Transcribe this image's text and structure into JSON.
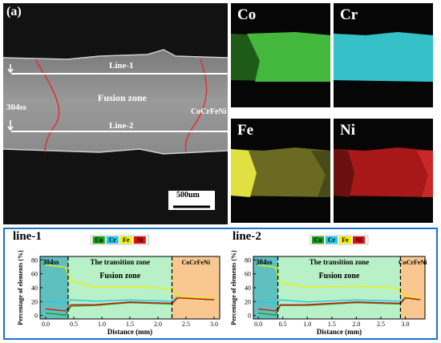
{
  "panel_label": "(a)",
  "sem": {
    "line1": "Line-1",
    "line2": "Line-2",
    "zone": "Fusion zone",
    "left_material": "304ss",
    "right_material": "CoCrFeNi",
    "scale": "500um"
  },
  "maps": [
    {
      "label": "Co",
      "color": "#3fb83a"
    },
    {
      "label": "Cr",
      "color": "#2fc4c8"
    },
    {
      "label": "Fe",
      "color": "#d8d83a"
    },
    {
      "label": "Ni",
      "color": "#d82020"
    }
  ],
  "legend": [
    "Co",
    "Cr",
    "Fe",
    "Ni"
  ],
  "colors": {
    "Co": "#18a018",
    "Cr": "#20c8e8",
    "Fe": "#f0f000",
    "Ni": "#e01010",
    "frame": "#1a73c8"
  },
  "chart_data": [
    {
      "type": "line",
      "title": "line-1",
      "xlabel": "Distance (mm)",
      "ylabel": "Percentage of elements (%)",
      "xlim": [
        -0.1,
        3.1
      ],
      "ylim": [
        -5,
        85
      ],
      "xticks": [
        "0.0",
        "0.5",
        "1.0",
        "1.5",
        "2.0",
        "2.5",
        "3.0"
      ],
      "yticks": [
        "0",
        "20",
        "40",
        "60",
        "80"
      ],
      "regions": {
        "left": "304ss",
        "middle": "The transition zone",
        "middle_sub": "Fusion zone",
        "right": "CoCrFeNi"
      },
      "boundaries": [
        0.4,
        2.25
      ],
      "x": [
        0.0,
        0.35,
        0.45,
        0.9,
        1.5,
        2.25,
        2.35,
        3.0
      ],
      "series": [
        {
          "name": "Co",
          "values": [
            2,
            2,
            12,
            16,
            17,
            18,
            24,
            24
          ]
        },
        {
          "name": "Cr",
          "values": [
            19,
            19,
            21,
            22,
            21,
            22,
            26,
            25
          ]
        },
        {
          "name": "Fe",
          "values": [
            71,
            71,
            48,
            42,
            40,
            40,
            26,
            26
          ]
        },
        {
          "name": "Ni",
          "values": [
            8,
            8,
            14,
            17,
            18,
            19,
            24,
            24
          ]
        }
      ]
    },
    {
      "type": "line",
      "title": "line-2",
      "xlabel": "Distance (mm)",
      "ylabel": "Percentage of elements (%)",
      "xlim": [
        -0.1,
        3.4
      ],
      "ylim": [
        -5,
        85
      ],
      "xticks": [
        "0.0",
        "0.5",
        "1.0",
        "1.5",
        "2.0",
        "2.5",
        "3.0"
      ],
      "yticks": [
        "0",
        "20",
        "40",
        "60",
        "80"
      ],
      "regions": {
        "left": "304ss",
        "middle": "The transition zone",
        "middle_sub": "Fusion zone",
        "right": "CoCrFeNi"
      },
      "boundaries": [
        0.4,
        2.9
      ],
      "x": [
        0.0,
        0.35,
        0.45,
        1.0,
        2.0,
        2.9,
        3.0,
        3.3
      ],
      "series": [
        {
          "name": "Co",
          "values": [
            2,
            2,
            13,
            16,
            17,
            18,
            24,
            24
          ]
        },
        {
          "name": "Cr",
          "values": [
            19,
            19,
            21,
            21,
            21,
            22,
            25,
            25
          ]
        },
        {
          "name": "Fe",
          "values": [
            71,
            71,
            46,
            42,
            41,
            40,
            26,
            26
          ]
        },
        {
          "name": "Ni",
          "values": [
            8,
            8,
            14,
            17,
            18,
            19,
            24,
            24
          ]
        }
      ]
    }
  ]
}
